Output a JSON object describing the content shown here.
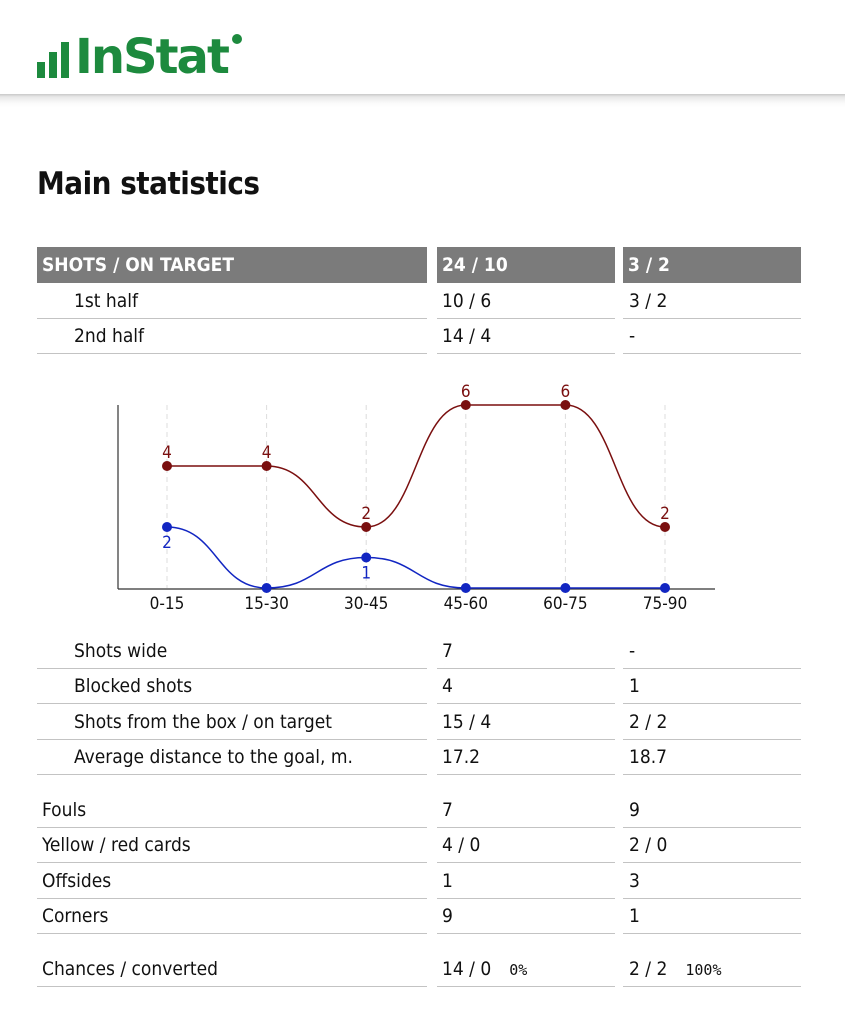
{
  "brand": {
    "logo_text": "InStat",
    "color": "#1d8a3e"
  },
  "title": "Main statistics",
  "shots_header": {
    "label": "SHOTS / ON TARGET",
    "team1": "24 / 10",
    "team2": "3 / 2"
  },
  "shots_halves": [
    {
      "label": "1st half",
      "team1": "10 / 6",
      "team2": "3 / 2"
    },
    {
      "label": "2nd half",
      "team1": "14 / 4",
      "team2": "-"
    }
  ],
  "shots_details": [
    {
      "label": "Shots wide",
      "team1": "7",
      "team2": "-"
    },
    {
      "label": "Blocked shots",
      "team1": "4",
      "team2": "1"
    },
    {
      "label": "Shots from the box / on target",
      "team1": "15 / 4",
      "team2": "2 / 2"
    },
    {
      "label": "Average distance to the goal, m.",
      "team1": "17.2",
      "team2": "18.7"
    }
  ],
  "misc": [
    {
      "label": "Fouls",
      "team1": "7",
      "team2": "9"
    },
    {
      "label": "Yellow / red cards",
      "team1": "4 / 0",
      "team2": "2 / 0"
    },
    {
      "label": "Offsides",
      "team1": "1",
      "team2": "3"
    },
    {
      "label": "Corners",
      "team1": "9",
      "team2": "1"
    }
  ],
  "chances": {
    "label": "Chances / converted",
    "team1": "14 / 0",
    "team1_pct": "0%",
    "team2": "2 / 2",
    "team2_pct": "100%"
  },
  "chart_data": {
    "type": "line",
    "categories": [
      "0-15",
      "15-30",
      "30-45",
      "45-60",
      "60-75",
      "75-90"
    ],
    "series": [
      {
        "color": "#7a0f0f",
        "values": [
          4,
          4,
          2,
          6,
          6,
          2
        ]
      },
      {
        "color": "#1226c2",
        "values": [
          2,
          0,
          1,
          0,
          0,
          0
        ]
      }
    ],
    "ylim": [
      0,
      6
    ],
    "grid": "vertical dashed"
  }
}
